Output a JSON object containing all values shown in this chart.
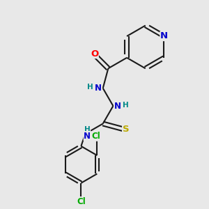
{
  "bg_color": "#e8e8e8",
  "bond_color": "#1a1a1a",
  "bond_width": 1.5,
  "atom_colors": {
    "N": "#0000cc",
    "O": "#ff0000",
    "S": "#bbaa00",
    "Cl": "#00aa00",
    "C": "#1a1a1a",
    "H": "#008888"
  },
  "font_size": 8.5,
  "fig_size": [
    3.0,
    3.0
  ],
  "dpi": 100,
  "xlim": [
    0,
    10
  ],
  "ylim": [
    0,
    10
  ]
}
